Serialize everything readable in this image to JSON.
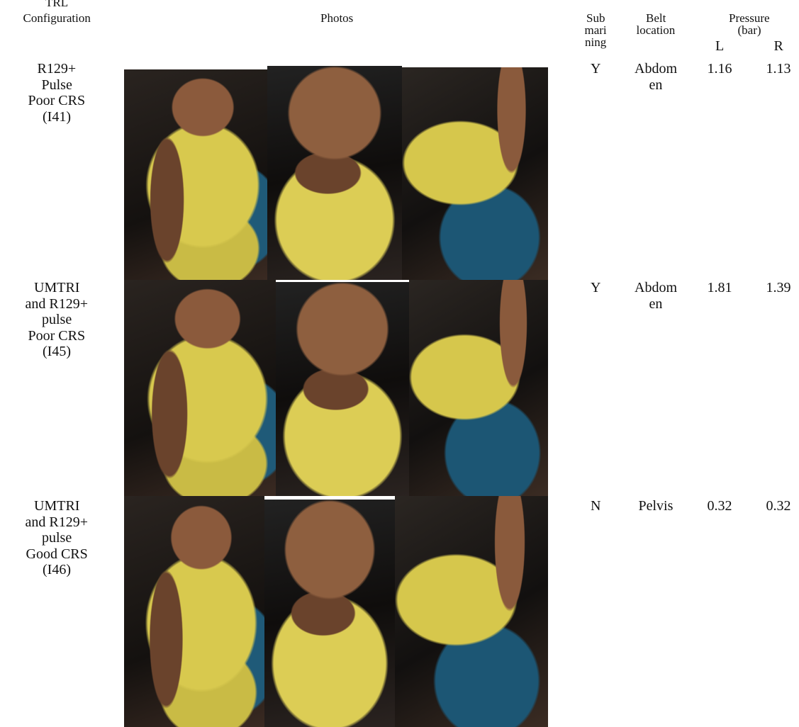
{
  "header": {
    "configuration": [
      "TRL",
      "Configuration"
    ],
    "photos": "Photos",
    "submarining": [
      "Sub",
      "mari",
      "ning"
    ],
    "belt_location": [
      "Belt",
      "location"
    ],
    "pressure": [
      "Pressure",
      "(bar)"
    ],
    "left": "L",
    "right": "R"
  },
  "rows": [
    {
      "configuration": [
        "R129+",
        "Pulse",
        "Poor CRS",
        "(I41)"
      ],
      "submarining": "Y",
      "belt_location": [
        "Abdom",
        "en"
      ],
      "pressure_left": 1.16,
      "pressure_right": 1.13
    },
    {
      "configuration": [
        "UMTRI",
        "and R129+",
        "pulse",
        "Poor CRS",
        "(I45)"
      ],
      "submarining": "Y",
      "belt_location": [
        "Abdom",
        "en"
      ],
      "pressure_left": 1.81,
      "pressure_right": 1.39
    },
    {
      "configuration": [
        "UMTRI",
        "and R129+",
        "pulse",
        "Good CRS",
        "(I46)"
      ],
      "submarining": "N",
      "belt_location": [
        "Pelvis"
      ],
      "pressure_left": 0.32,
      "pressure_right": 0.32
    }
  ]
}
